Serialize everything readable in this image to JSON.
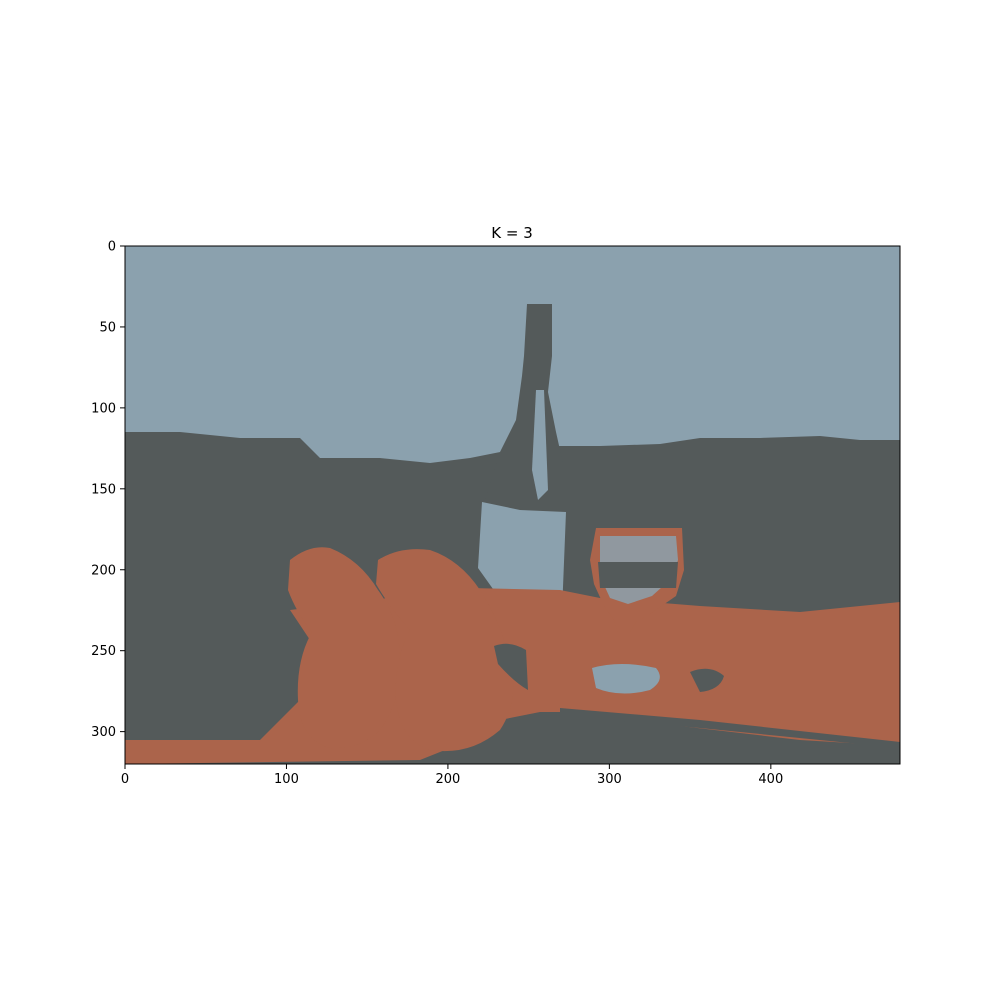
{
  "chart_data": {
    "type": "heatmap",
    "subtype": "image",
    "title": "K = 3",
    "xlabel": "",
    "ylabel": "",
    "xlim": [
      0,
      480
    ],
    "ylim": [
      320,
      0
    ],
    "x_ticks": [
      0,
      100,
      200,
      300,
      400
    ],
    "y_ticks": [
      0,
      50,
      100,
      150,
      200,
      250,
      300
    ],
    "grid": false,
    "palette": {
      "cluster_light": "#8ba1ae",
      "cluster_dark": "#545a5a",
      "cluster_accent": "#ab644b"
    },
    "k_clusters": 3
  }
}
